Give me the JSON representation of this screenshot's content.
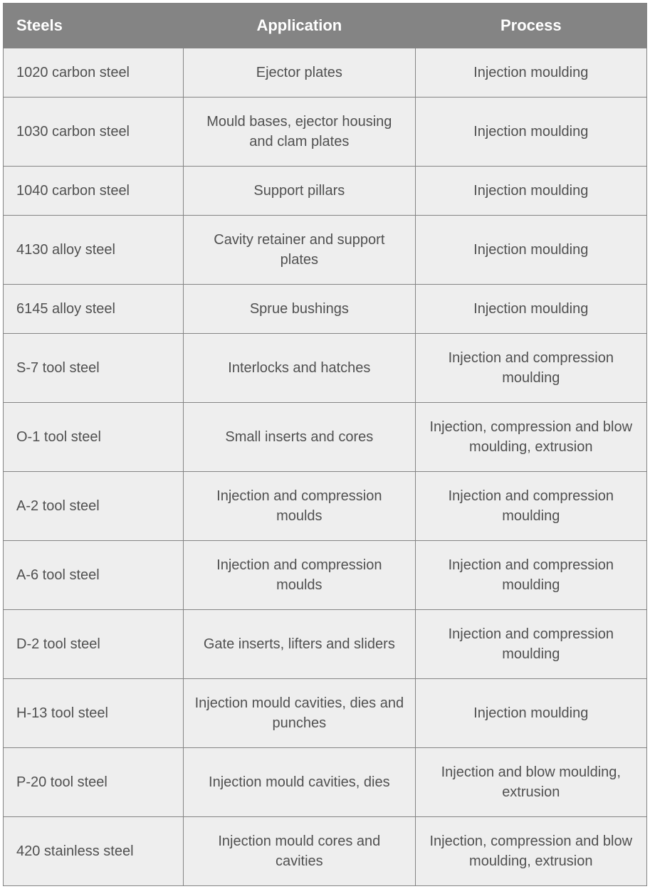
{
  "table": {
    "header_bg": "#848484",
    "header_fg": "#ffffff",
    "cell_bg": "#eeeeee",
    "cell_fg": "#505050",
    "border_color": "#848484",
    "header_fontsize": 22,
    "cell_fontsize": 20,
    "columns": [
      "Steels",
      "Application",
      "Process"
    ],
    "column_widths": [
      "28%",
      "36%",
      "36%"
    ],
    "column_align": [
      "left",
      "center",
      "center"
    ],
    "rows": [
      [
        "1020 carbon steel",
        "Ejector plates",
        "Injection moulding"
      ],
      [
        "1030 carbon steel",
        "Mould bases, ejector housing and clam plates",
        "Injection moulding"
      ],
      [
        "1040 carbon steel",
        "Support pillars",
        "Injection moulding"
      ],
      [
        "4130 alloy steel",
        "Cavity retainer and support plates",
        "Injection moulding"
      ],
      [
        "6145 alloy steel",
        "Sprue bushings",
        "Injection moulding"
      ],
      [
        "S-7 tool steel",
        "Interlocks and hatches",
        "Injection and compression moulding"
      ],
      [
        "O-1 tool steel",
        "Small inserts and cores",
        "Injection, compression and blow moulding, extrusion"
      ],
      [
        "A-2 tool steel",
        "Injection and compression moulds",
        "Injection and compression moulding"
      ],
      [
        "A-6 tool steel",
        "Injection and compression moulds",
        "Injection and compression moulding"
      ],
      [
        "D-2 tool steel",
        "Gate inserts, lifters and sliders",
        "Injection and compression moulding"
      ],
      [
        "H-13 tool steel",
        "Injection mould cavities, dies and punches",
        "Injection moulding"
      ],
      [
        "P-20 tool steel",
        "Injection mould cavities, dies",
        "Injection and blow moulding, extrusion"
      ],
      [
        "420 stainless steel",
        "Injection mould cores and cavities",
        "Injection, compression and blow moulding, extrusion"
      ]
    ]
  }
}
